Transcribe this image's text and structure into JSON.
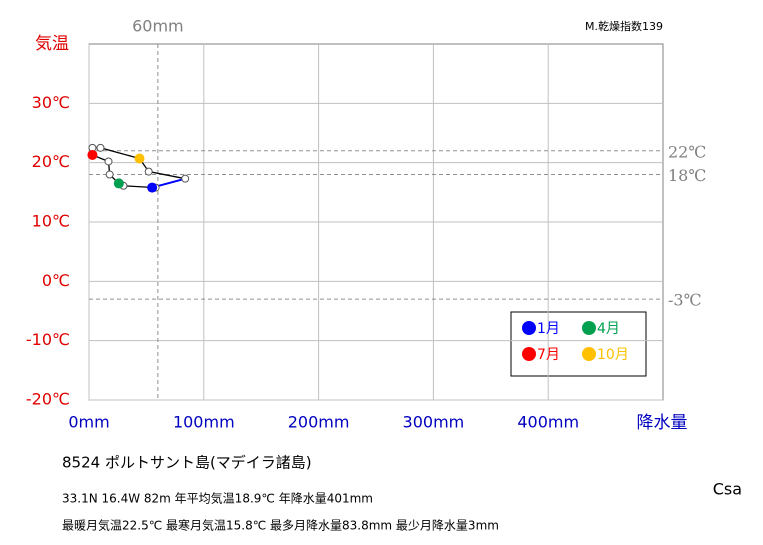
{
  "chart_data": {
    "type": "climograph",
    "y_title": "気温",
    "x_title": "降水量",
    "index_note": "M.乾燥指数139",
    "station": "8524  ポルトサント島(マデイラ諸島)",
    "info1": "33.1N  16.4W 82m  年平均気温18.9℃ 年降水量401mm",
    "info2": "最暖月気温22.5℃ 最寒月気温15.8℃ 最多月降水量83.8mm 最少月降水量3mm",
    "climate": "Csa",
    "x": [
      55,
      58,
      30,
      26,
      18,
      17,
      3,
      3,
      10,
      44,
      52,
      83.8
    ],
    "values": [
      15.8,
      15.8,
      16.1,
      16.5,
      18.0,
      20.2,
      21.3,
      22.5,
      22.5,
      20.7,
      18.5,
      17.3
    ],
    "point_labels": [
      "1月",
      null,
      null,
      "4月",
      null,
      null,
      "7月",
      null,
      null,
      "10月",
      null,
      null
    ],
    "point_colors": [
      "#0000ff",
      null,
      null,
      "#00a050",
      null,
      null,
      "#ff0000",
      null,
      null,
      "#ffc000",
      null,
      null
    ],
    "line_color": "#000000",
    "closing_color": "#0000ff",
    "xlim": [
      0,
      500
    ],
    "ylim": [
      -20,
      40
    ],
    "xticks": [
      {
        "value": 0,
        "label": "0mm"
      },
      {
        "value": 100,
        "label": "100mm"
      },
      {
        "value": 200,
        "label": "200mm"
      },
      {
        "value": 300,
        "label": "300mm"
      },
      {
        "value": 400,
        "label": "400mm"
      }
    ],
    "yticks": [
      {
        "value": -20,
        "label": "-20℃"
      },
      {
        "value": -10,
        "label": "-10℃"
      },
      {
        "value": 0,
        "label": "0℃"
      },
      {
        "value": 10,
        "label": "10℃"
      },
      {
        "value": 20,
        "label": "20℃"
      },
      {
        "value": 30,
        "label": "30℃"
      }
    ],
    "hlines": [
      {
        "value": 22,
        "label": "22℃"
      },
      {
        "value": 18,
        "label": "18℃"
      },
      {
        "value": -3,
        "label": "-3℃"
      }
    ],
    "vlines": [
      {
        "value": 60,
        "label": "60mm"
      }
    ],
    "grid": true
  }
}
